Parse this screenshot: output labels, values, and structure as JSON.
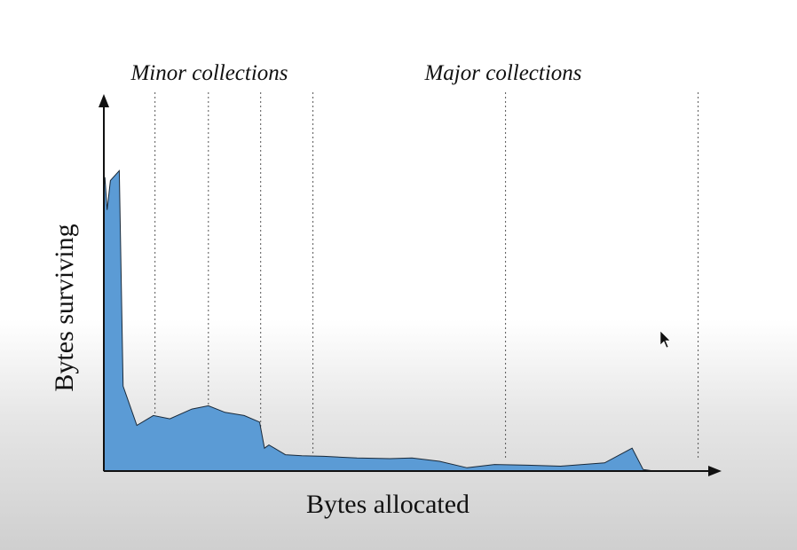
{
  "chart_data": {
    "type": "area",
    "xlabel": "Bytes allocated",
    "ylabel": "Bytes surviving",
    "annotations": [
      "Minor collections",
      "Major collections"
    ],
    "x_range": [
      0,
      100
    ],
    "y_range": [
      0,
      100
    ],
    "minor_collection_x": [
      9.3,
      19,
      28.5,
      38
    ],
    "major_collection_x": [
      73,
      108
    ],
    "series": [
      {
        "color": "#5b9bd5",
        "x": [
          0,
          0.2,
          0.6,
          1.2,
          2.8,
          3.5,
          6,
          9,
          12,
          16,
          19,
          22,
          25.5,
          28.3,
          29.2,
          30,
          31,
          33,
          36,
          40,
          46,
          52,
          56,
          61,
          66,
          71,
          77,
          83,
          91,
          96,
          98,
          100
        ],
        "values": [
          86,
          90,
          80,
          89,
          92,
          26,
          14,
          17,
          16,
          19,
          20,
          18,
          17,
          15,
          7,
          8,
          7,
          5,
          4.7,
          4.5,
          4,
          3.8,
          4,
          3,
          1,
          2,
          1.8,
          1.5,
          2.5,
          7,
          0.5,
          0
        ]
      }
    ]
  }
}
